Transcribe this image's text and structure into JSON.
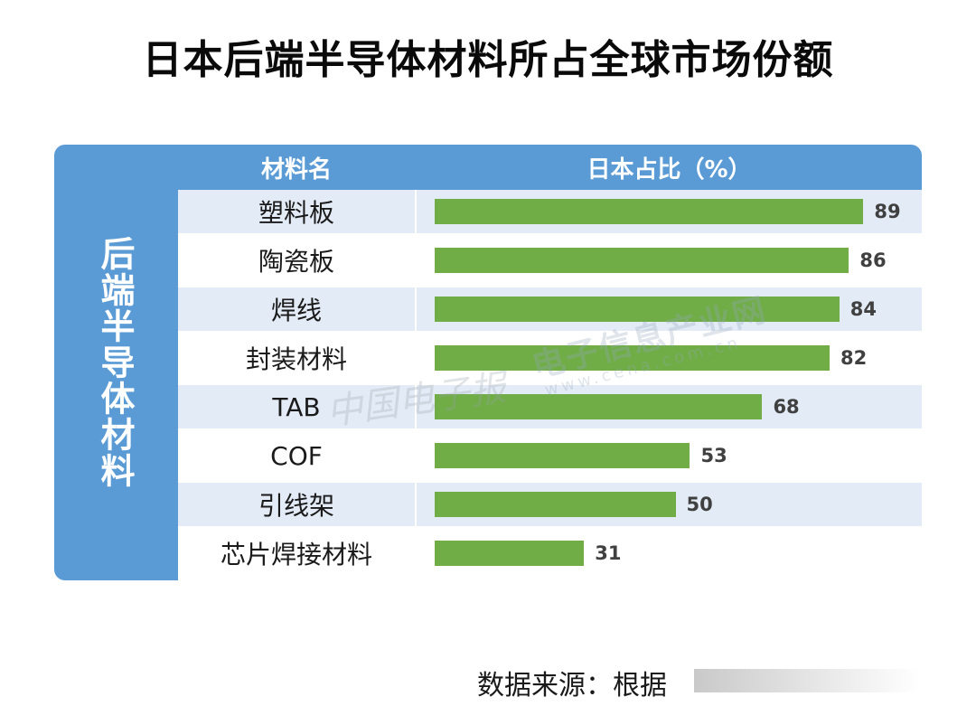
{
  "title": "日本后端半导体材料所占全球市场份额",
  "side_label": "后端半导体材料",
  "watermark": {
    "site_name": "电子信息产业网",
    "site_url": "www.cena.com.cn",
    "brand": "中国电子报"
  },
  "source": "数据来源：根据",
  "chart_data": {
    "type": "bar",
    "orientation": "horizontal",
    "columns": [
      "材料名",
      "日本占比（%）"
    ],
    "categories": [
      "塑料板",
      "陶瓷板",
      "焊线",
      "封装材料",
      "TAB",
      "COF",
      "引线架",
      "芯片焊接材料"
    ],
    "values": [
      89,
      86,
      84,
      82,
      68,
      53,
      50,
      31
    ],
    "xlim": [
      0,
      100
    ],
    "bar_color": "#70ad47",
    "header_color": "#5b9bd5",
    "row_alt_color": "#e3ebf6"
  }
}
